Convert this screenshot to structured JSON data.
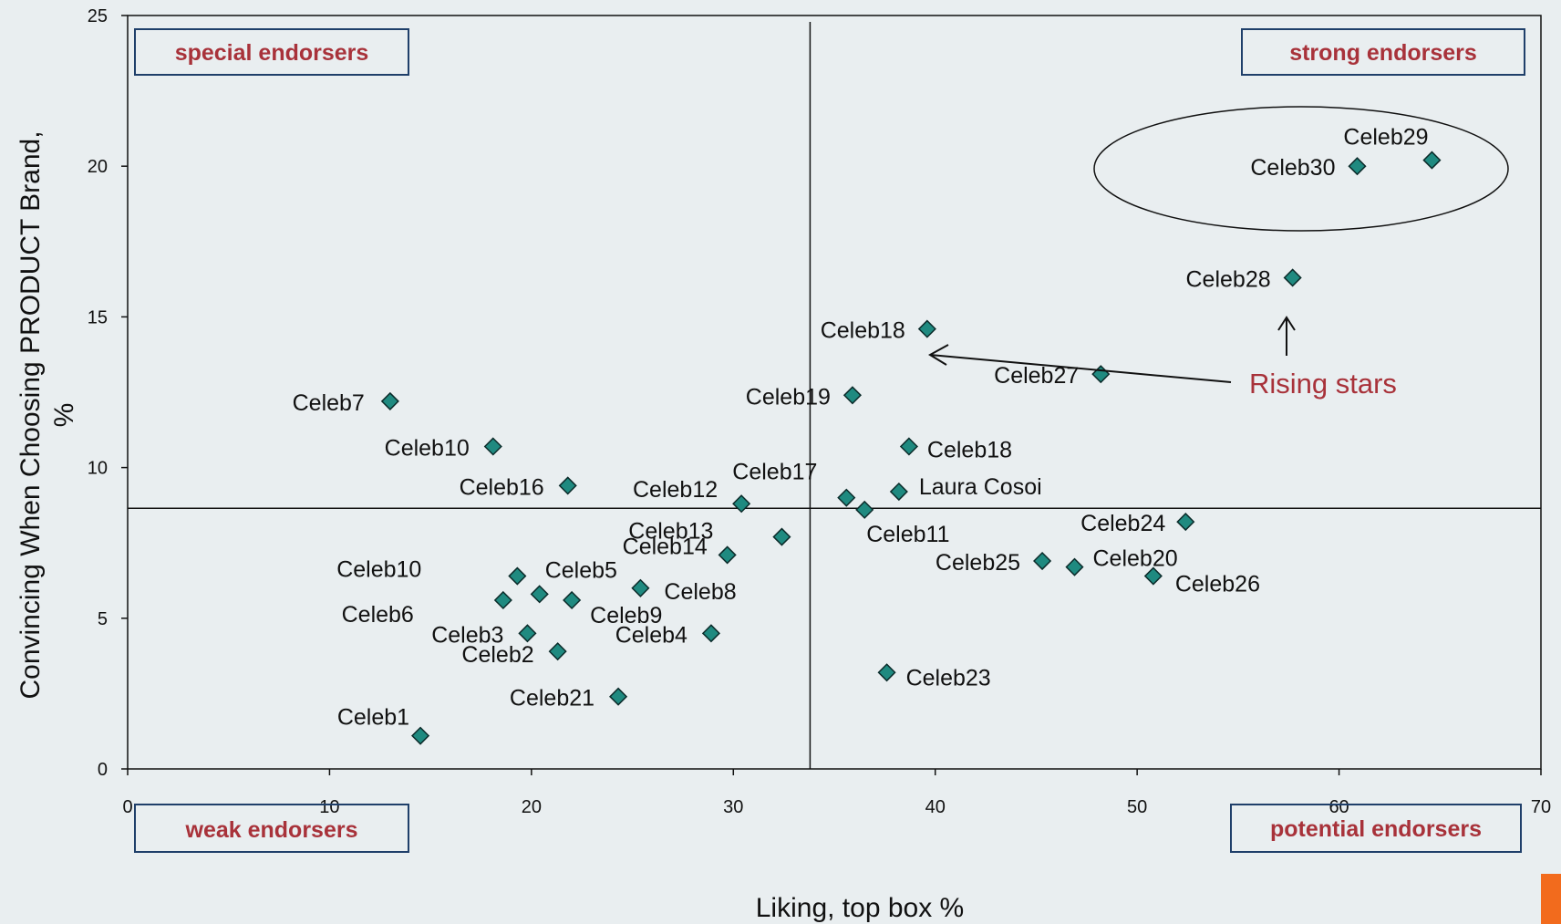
{
  "chart_data": {
    "type": "scatter",
    "xlabel": "Liking, top box %",
    "ylabel_line1": "Convincing When Choosing PRODUCT Brand,",
    "ylabel_line2": "%",
    "xlim": [
      0,
      70
    ],
    "ylim": [
      0,
      25
    ],
    "xticks": [
      0,
      10,
      20,
      30,
      40,
      50,
      60,
      70
    ],
    "yticks": [
      0,
      5,
      10,
      15,
      20,
      25
    ],
    "reference_lines": {
      "x": 33.8,
      "y": 8.65
    },
    "marker_color": "#1f8a80",
    "points": [
      {
        "x": 14.5,
        "y": 1.1,
        "label": "Celeb1"
      },
      {
        "x": 21.3,
        "y": 3.9,
        "label": "Celeb2"
      },
      {
        "x": 19.8,
        "y": 4.5,
        "label": "Celeb3"
      },
      {
        "x": 28.9,
        "y": 4.5,
        "label": "Celeb4"
      },
      {
        "x": 20.4,
        "y": 5.8,
        "label": "Celeb5"
      },
      {
        "x": 18.6,
        "y": 5.6,
        "label": "Celeb6"
      },
      {
        "x": 13.0,
        "y": 12.2,
        "label": "Celeb7"
      },
      {
        "x": 25.4,
        "y": 6.0,
        "label": "Celeb8"
      },
      {
        "x": 22.0,
        "y": 5.6,
        "label": "Celeb9"
      },
      {
        "x": 19.3,
        "y": 6.4,
        "label": "Celeb10"
      },
      {
        "x": 18.1,
        "y": 10.7,
        "label": "Celeb10"
      },
      {
        "x": 36.5,
        "y": 8.6,
        "label": "Celeb11"
      },
      {
        "x": 30.4,
        "y": 8.8,
        "label": "Celeb12"
      },
      {
        "x": 32.4,
        "y": 7.7,
        "label": "Celeb13"
      },
      {
        "x": 29.7,
        "y": 7.1,
        "label": "Celeb14"
      },
      {
        "x": 21.8,
        "y": 9.4,
        "label": "Celeb16"
      },
      {
        "x": 35.6,
        "y": 9.0,
        "label": "Celeb17"
      },
      {
        "x": 39.6,
        "y": 14.6,
        "label": "Celeb18"
      },
      {
        "x": 38.7,
        "y": 10.7,
        "label": "Celeb18"
      },
      {
        "x": 35.9,
        "y": 12.4,
        "label": "Celeb19"
      },
      {
        "x": 46.9,
        "y": 6.7,
        "label": "Celeb20"
      },
      {
        "x": 24.3,
        "y": 2.4,
        "label": "Celeb21"
      },
      {
        "x": 37.6,
        "y": 3.2,
        "label": "Celeb23"
      },
      {
        "x": 52.4,
        "y": 8.2,
        "label": "Celeb24"
      },
      {
        "x": 45.3,
        "y": 6.9,
        "label": "Celeb25"
      },
      {
        "x": 50.8,
        "y": 6.4,
        "label": "Celeb26"
      },
      {
        "x": 48.2,
        "y": 13.1,
        "label": "Celeb27"
      },
      {
        "x": 57.7,
        "y": 16.3,
        "label": "Celeb28"
      },
      {
        "x": 64.6,
        "y": 20.2,
        "label": "Celeb29"
      },
      {
        "x": 60.9,
        "y": 20.0,
        "label": "Celeb30"
      },
      {
        "x": 38.2,
        "y": 9.2,
        "label": "Laura Cosoi"
      }
    ],
    "quadrants": {
      "top_left": "special endorsers",
      "top_right": "strong endorsers",
      "bottom_left": "weak endorsers",
      "bottom_right": "potential endorsers"
    },
    "annotation": "Rising stars"
  }
}
